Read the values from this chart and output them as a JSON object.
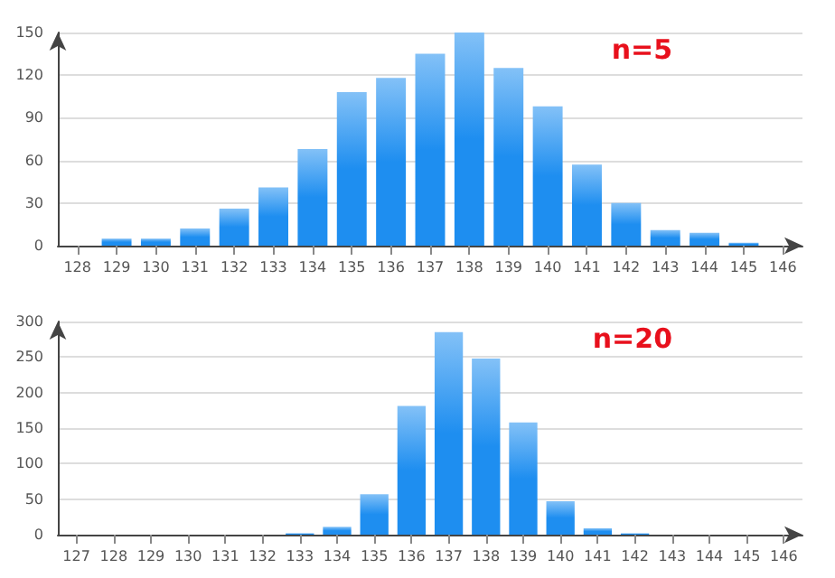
{
  "chart_data": [
    {
      "type": "bar",
      "annotations": [
        "n=5"
      ],
      "categories": [
        "128",
        "129",
        "130",
        "131",
        "132",
        "133",
        "134",
        "135",
        "136",
        "137",
        "138",
        "139",
        "140",
        "141",
        "142",
        "143",
        "144",
        "145",
        "146"
      ],
      "values": [
        0,
        5,
        5,
        12,
        26,
        41,
        68,
        108,
        118,
        135,
        150,
        125,
        98,
        57,
        30,
        11,
        9,
        2,
        0
      ],
      "color": "#1e8ef0",
      "ylim": [
        0,
        150
      ],
      "yticks": [
        0,
        30,
        60,
        90,
        120,
        150
      ],
      "grid": "y"
    },
    {
      "type": "bar",
      "annotations": [
        "n=20"
      ],
      "categories": [
        "127",
        "128",
        "129",
        "130",
        "131",
        "132",
        "133",
        "134",
        "135",
        "136",
        "137",
        "138",
        "139",
        "140",
        "141",
        "142",
        "143",
        "144",
        "145",
        "146"
      ],
      "values": [
        0,
        0,
        0,
        0,
        0,
        0,
        2,
        11,
        57,
        181,
        285,
        248,
        158,
        47,
        9,
        2,
        0,
        0,
        0,
        0
      ],
      "color": "#1e8ef0",
      "ylim": [
        0,
        300
      ],
      "yticks": [
        0,
        50,
        100,
        150,
        200,
        250,
        300
      ],
      "grid": "y"
    }
  ]
}
